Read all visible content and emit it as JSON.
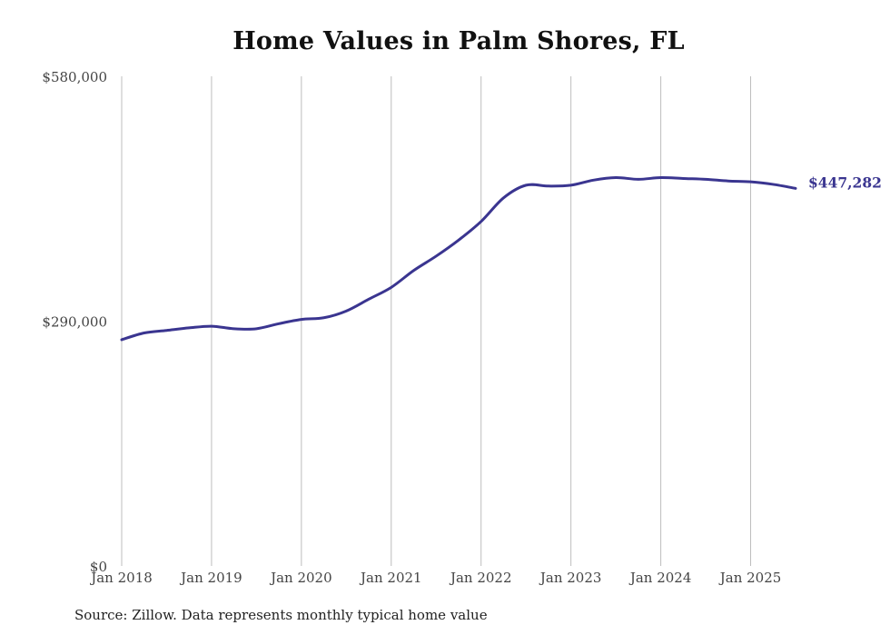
{
  "title": "Home Values in Palm Shores, FL",
  "source": "Source: Zillow. Data represents monthly typical home value",
  "colors": {
    "line": "#3a3590",
    "grid": "#bdbdbd",
    "text": "#444444"
  },
  "chart_data": {
    "type": "line",
    "title": "Home Values in Palm Shores, FL",
    "xlabel": "",
    "ylabel": "",
    "ylim": [
      0,
      580000
    ],
    "xlim": [
      "2018-01",
      "2025-07"
    ],
    "grid": "vertical",
    "yticks": [
      {
        "value": 0,
        "label": "$0"
      },
      {
        "value": 290000,
        "label": "$290,000"
      },
      {
        "value": 580000,
        "label": "$580,000"
      }
    ],
    "xticks": [
      {
        "value": "2018-01",
        "label": "Jan 2018"
      },
      {
        "value": "2019-01",
        "label": "Jan 2019"
      },
      {
        "value": "2020-01",
        "label": "Jan 2020"
      },
      {
        "value": "2021-01",
        "label": "Jan 2021"
      },
      {
        "value": "2022-01",
        "label": "Jan 2022"
      },
      {
        "value": "2023-01",
        "label": "Jan 2023"
      },
      {
        "value": "2024-01",
        "label": "Jan 2024"
      },
      {
        "value": "2025-01",
        "label": "Jan 2025"
      }
    ],
    "end_label": "$447,282",
    "series": [
      {
        "x": [
          "2018-01",
          "2018-04",
          "2018-07",
          "2018-10",
          "2019-01",
          "2019-04",
          "2019-07",
          "2019-10",
          "2020-01",
          "2020-04",
          "2020-07",
          "2020-10",
          "2021-01",
          "2021-04",
          "2021-07",
          "2021-10",
          "2022-01",
          "2022-04",
          "2022-07",
          "2022-10",
          "2023-01",
          "2023-04",
          "2023-07",
          "2023-10",
          "2024-01",
          "2024-04",
          "2024-07",
          "2024-10",
          "2025-01",
          "2025-04",
          "2025-07"
        ],
        "values": [
          268000,
          276000,
          279000,
          282000,
          284000,
          281000,
          281000,
          287000,
          292000,
          294000,
          302000,
          316000,
          330000,
          350000,
          367000,
          386000,
          408000,
          436000,
          451000,
          450000,
          451000,
          457000,
          460000,
          458000,
          460000,
          459000,
          458000,
          456000,
          455000,
          452000,
          447282
        ]
      }
    ]
  }
}
